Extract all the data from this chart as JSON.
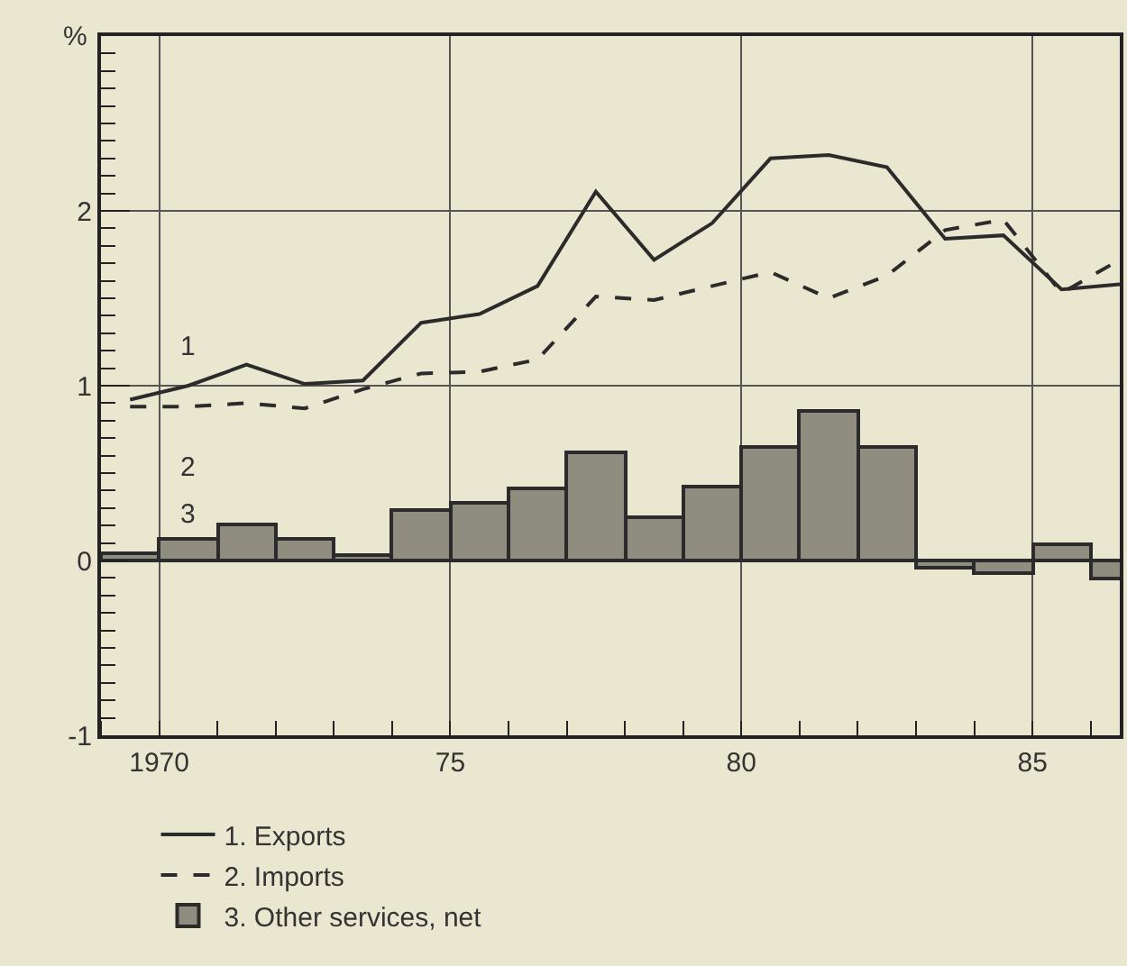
{
  "chart_data": {
    "type": "line",
    "ylabel": "%",
    "x": [
      1969.5,
      1970.5,
      1971.5,
      1972.5,
      1973.5,
      1974.5,
      1975.5,
      1976.5,
      1977.5,
      1978.5,
      1979.5,
      1980.5,
      1981.5,
      1982.5,
      1983.5,
      1984.5,
      1985.5,
      1986.5
    ],
    "series": [
      {
        "name": "1. Exports",
        "color": "#2b2b2b",
        "line_style": "solid",
        "values": [
          0.92,
          1.0,
          1.12,
          1.01,
          1.03,
          1.36,
          1.41,
          1.57,
          2.11,
          1.72,
          1.93,
          2.3,
          2.32,
          2.25,
          1.84,
          1.86,
          1.55,
          1.58
        ]
      },
      {
        "name": "2. Imports",
        "color": "#2b2b2b",
        "line_style": "dashed",
        "values": [
          0.88,
          0.88,
          0.9,
          0.87,
          0.98,
          1.07,
          1.08,
          1.15,
          1.51,
          1.49,
          1.57,
          1.65,
          1.5,
          1.63,
          1.89,
          1.95,
          1.53,
          1.72
        ]
      },
      {
        "name": "3. Other services, net",
        "type": "bar",
        "color": "#8f8d80",
        "values": [
          0.04,
          0.12,
          0.21,
          0.12,
          0.03,
          0.29,
          0.33,
          0.41,
          0.62,
          0.25,
          0.42,
          0.65,
          0.86,
          0.65,
          -0.04,
          -0.07,
          0.09,
          -0.1
        ]
      }
    ],
    "annotations": [
      "1",
      "2",
      "3"
    ],
    "xlim": [
      1969,
      1986.5
    ],
    "xticks": [
      1970,
      {
        "value": 1975,
        "label": "75"
      },
      {
        "value": 1980,
        "label": "80"
      },
      {
        "value": 1985,
        "label": "85"
      }
    ],
    "ylim": [
      -1,
      3
    ],
    "yticks": [
      -1,
      0,
      1,
      2
    ],
    "grid": true,
    "legend": "bottom"
  }
}
